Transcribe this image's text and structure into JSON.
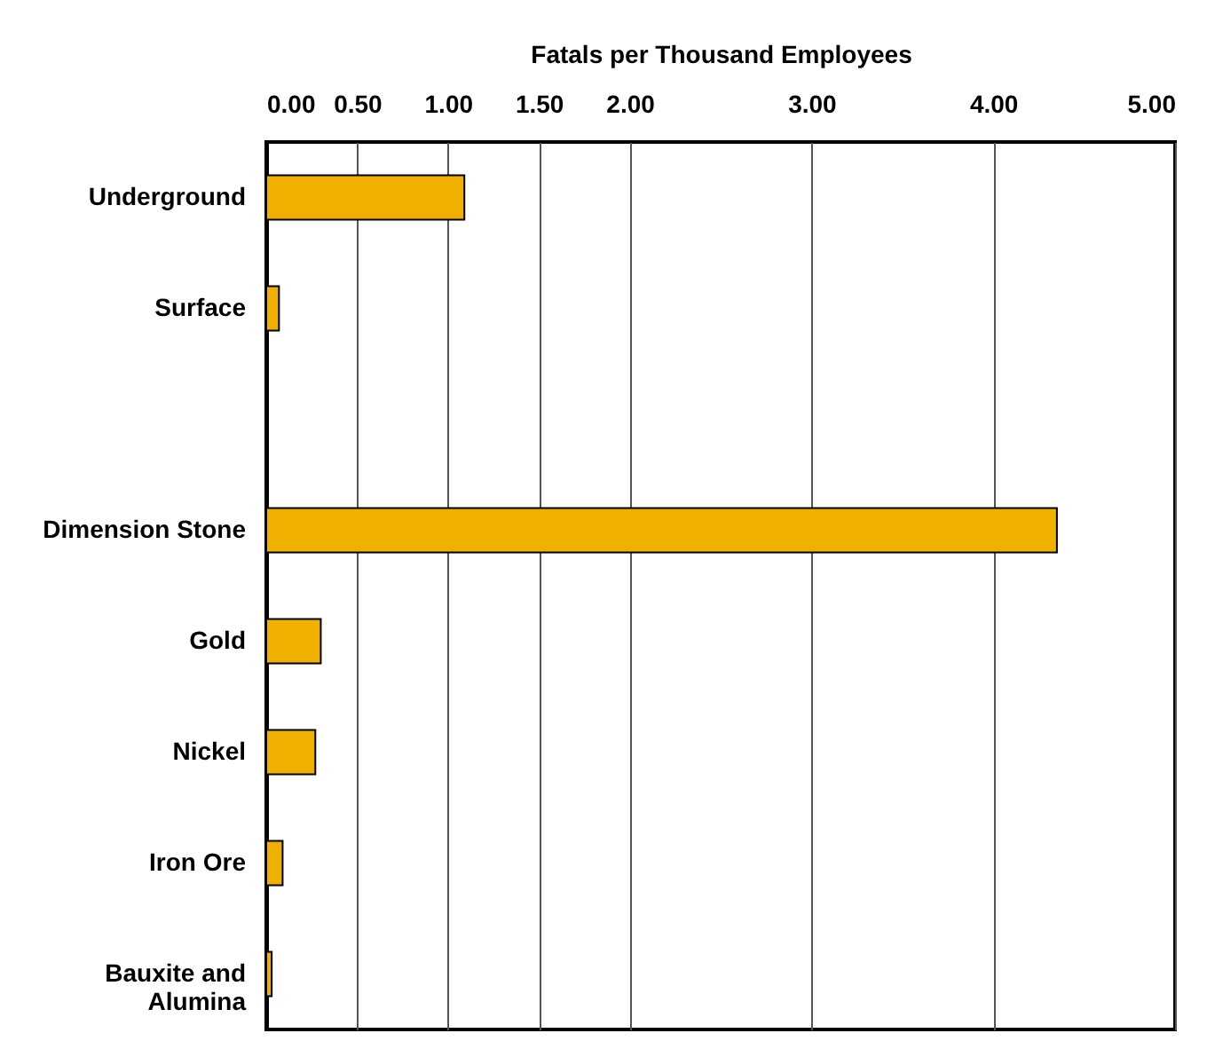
{
  "chart_data": {
    "type": "bar",
    "orientation": "horizontal",
    "xlabel": "Fatals per Thousand Employees",
    "categories": [
      "Underground",
      "Surface",
      null,
      "Dimension Stone",
      "Gold",
      "Nickel",
      "Iron Ore",
      "Bauxite and Alumina"
    ],
    "values": [
      1.09,
      0.07,
      null,
      4.35,
      0.3,
      0.27,
      0.09,
      0.03
    ],
    "color": "#f0b000",
    "xlim": [
      0,
      5
    ],
    "xticks": [
      {
        "value": 0,
        "label": "0.00"
      },
      {
        "value": 0.5,
        "label": "0.50"
      },
      {
        "value": 1,
        "label": "1.00"
      },
      {
        "value": 1.5,
        "label": "1.50"
      },
      {
        "value": 2,
        "label": "2.00"
      },
      {
        "value": 3,
        "label": "3.00"
      },
      {
        "value": 4,
        "label": "4.00"
      },
      {
        "value": 5,
        "label": "5.00"
      }
    ],
    "grid": "x"
  }
}
